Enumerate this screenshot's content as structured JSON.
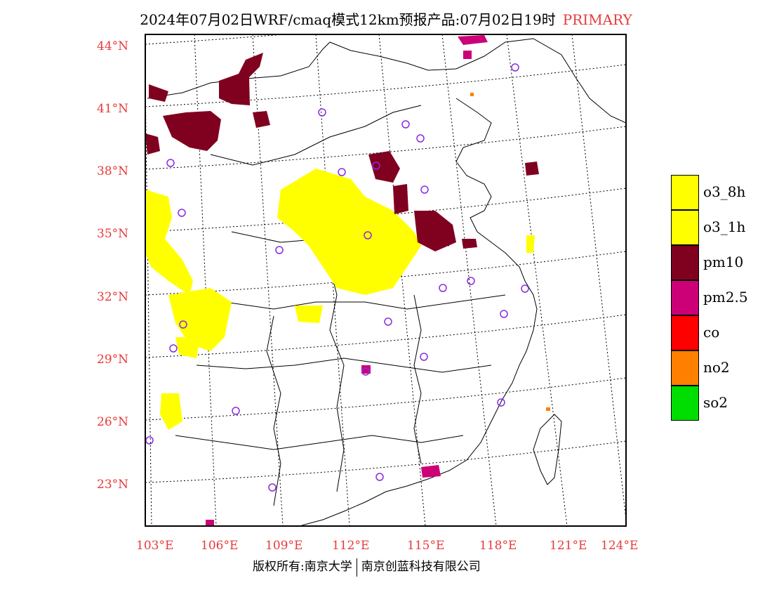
{
  "title": "2024年07月02日WRF/cmaq模式12km预报产品:07月02日19时",
  "title_tag": "PRIMARY",
  "map": {
    "lat_labels": [
      "44°N",
      "41°N",
      "38°N",
      "35°N",
      "32°N",
      "29°N",
      "26°N",
      "23°N"
    ],
    "lon_labels": [
      "103°E",
      "106°E",
      "109°E",
      "112°E",
      "115°E",
      "118°E",
      "121°E",
      "124°E"
    ]
  },
  "legend": [
    {
      "label": "o3_8h",
      "color": "#ffff00"
    },
    {
      "label": "o3_1h",
      "color": "#ffff00"
    },
    {
      "label": "pm10",
      "color": "#800020"
    },
    {
      "label": "pm2.5",
      "color": "#cc0077"
    },
    {
      "label": "co",
      "color": "#ff0000"
    },
    {
      "label": "no2",
      "color": "#ff8000"
    },
    {
      "label": "so2",
      "color": "#00dd00"
    }
  ],
  "footer": {
    "left": "版权所有:南京大学",
    "right": "南京创蓝科技有限公司"
  }
}
